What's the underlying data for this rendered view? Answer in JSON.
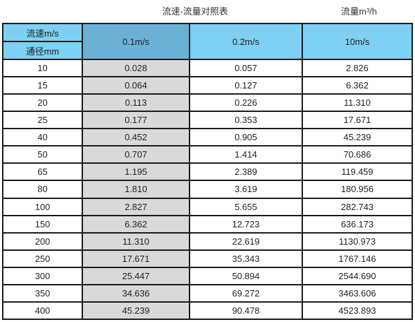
{
  "titles": {
    "main": "流速-流量对照表",
    "unit": "流量m³/h"
  },
  "chart_data": {
    "type": "table",
    "title": "流速-流量对照表",
    "unit_label": "流量m³/h",
    "corner_top": "流速m/s",
    "corner_bottom": "通径mm",
    "velocity_headers": [
      "0.1m/s",
      "0.2m/s",
      "10m/s"
    ],
    "columns": [
      "通径mm",
      "0.1m/s",
      "0.2m/s",
      "10m/s"
    ],
    "rows": [
      [
        "10",
        "0.028",
        "0.057",
        "2.826"
      ],
      [
        "15",
        "0.064",
        "0.127",
        "6.362"
      ],
      [
        "20",
        "0.113",
        "0.226",
        "11.310"
      ],
      [
        "25",
        "0.177",
        "0.353",
        "17.671"
      ],
      [
        "40",
        "0.452",
        "0.905",
        "45.239"
      ],
      [
        "50",
        "0.707",
        "1.414",
        "70.686"
      ],
      [
        "65",
        "1.195",
        "2.389",
        "119.459"
      ],
      [
        "80",
        "1.810",
        "3.619",
        "180.956"
      ],
      [
        "100",
        "2.827",
        "5.655",
        "282.743"
      ],
      [
        "150",
        "6.362",
        "12.723",
        "636.173"
      ],
      [
        "200",
        "11.310",
        "22.619",
        "1130.973"
      ],
      [
        "250",
        "17.671",
        "35.343",
        "1767.146"
      ],
      [
        "300",
        "25.447",
        "50.894",
        "2544.690"
      ],
      [
        "350",
        "34.636",
        "69.272",
        "3463.606"
      ],
      [
        "400",
        "45.239",
        "90.478",
        "4523.893"
      ]
    ]
  },
  "colors": {
    "header_blue": "#7ed1f2",
    "header_blue_dark": "#69b2d6",
    "shaded_column": "#d9d9d9",
    "border": "#1a1a1a",
    "text": "#1f1f1f",
    "title_text": "#333333"
  }
}
